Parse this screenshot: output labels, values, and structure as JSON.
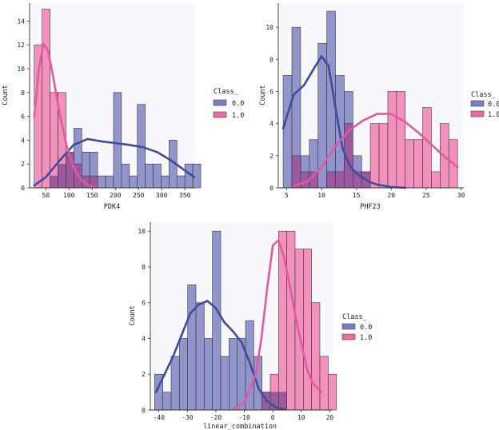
{
  "chart_data": [
    {
      "id": "pdk4",
      "type": "histogram-kde",
      "xlabel": "PDK4",
      "ylabel": "Count",
      "xlim": [
        15,
        372
      ],
      "ylim": [
        0,
        15.5
      ],
      "xticks": [
        50,
        100,
        150,
        200,
        250,
        300,
        350
      ],
      "yticks": [
        0,
        2,
        4,
        6,
        8,
        10,
        12,
        14
      ],
      "legend": {
        "title": "Class_",
        "labels": [
          "0.0",
          "1.0"
        ]
      },
      "series": [
        {
          "name": "0.0",
          "bins": {
            "start": 25,
            "width": 17.1
          },
          "values": [
            0,
            0,
            1,
            2,
            3,
            5,
            3,
            3,
            1,
            1,
            8,
            2,
            1,
            7,
            2,
            2,
            1,
            4,
            1,
            2,
            2
          ]
        },
        {
          "name": "1.0",
          "bins": {
            "start": 25,
            "width": 17.1
          },
          "values": [
            12,
            15,
            8,
            8,
            3,
            2,
            1,
            1,
            0,
            0,
            0,
            0,
            0,
            0,
            0,
            0,
            0,
            0,
            0,
            0,
            0
          ]
        }
      ],
      "kde": [
        {
          "name": "0.0",
          "x": [
            25,
            50,
            80,
            110,
            140,
            170,
            200,
            230,
            260,
            290,
            320,
            345,
            370
          ],
          "y": [
            0.2,
            0.9,
            2.3,
            3.6,
            4.1,
            3.9,
            3.75,
            3.6,
            3.4,
            3.0,
            2.3,
            1.6,
            0.9
          ]
        },
        {
          "name": "1.0",
          "x": [
            25,
            35,
            45,
            55,
            65,
            80,
            95,
            110,
            125,
            140,
            155
          ],
          "y": [
            6,
            10,
            12.1,
            11.5,
            9.5,
            6.2,
            3.5,
            1.7,
            0.7,
            0.25,
            0.05
          ]
        }
      ]
    },
    {
      "id": "phf23",
      "type": "histogram-kde",
      "xlabel": "PHF23",
      "ylabel": "Count",
      "xlim": [
        3.8,
        30.4
      ],
      "ylim": [
        0,
        11.5
      ],
      "xticks": [
        5,
        10,
        15,
        20,
        25,
        30
      ],
      "yticks": [
        0,
        2,
        4,
        6,
        8,
        10
      ],
      "legend": {
        "title": "Class_",
        "labels": [
          "0.0",
          "1.0"
        ]
      },
      "series": [
        {
          "name": "0.0",
          "bins": {
            "start": 4.5,
            "width": 1.25
          },
          "values": [
            7,
            10,
            2,
            3,
            9,
            11,
            7,
            6,
            2,
            1,
            0,
            0,
            0,
            0,
            0,
            0,
            0,
            0,
            0,
            0
          ]
        },
        {
          "name": "1.0",
          "bins": {
            "start": 4.5,
            "width": 1.25
          },
          "values": [
            0,
            2,
            1,
            1,
            0,
            1,
            1,
            4,
            1,
            1,
            4,
            4,
            6,
            6,
            3,
            3,
            5,
            1,
            4,
            3
          ]
        }
      ],
      "kde": [
        {
          "name": "0.0",
          "x": [
            4.5,
            6,
            7.5,
            9,
            10,
            11,
            12,
            13,
            14,
            15,
            16,
            17,
            18,
            20,
            22
          ],
          "y": [
            3.7,
            5.8,
            6.4,
            7.5,
            8.2,
            7.6,
            5.0,
            2.5,
            1.4,
            0.9,
            0.6,
            0.35,
            0.2,
            0.05,
            0
          ]
        },
        {
          "name": "1.0",
          "x": [
            6,
            8,
            10,
            12,
            14,
            16,
            18,
            20,
            22,
            24,
            26,
            28,
            29.5
          ],
          "y": [
            0.1,
            0.4,
            1.3,
            2.6,
            3.6,
            4.2,
            4.6,
            4.6,
            4.1,
            3.4,
            2.6,
            1.8,
            1.3
          ]
        }
      ]
    },
    {
      "id": "linear_combination",
      "type": "histogram-kde",
      "xlabel": "linear_combination",
      "ylabel": "Count",
      "xlim": [
        -43,
        21
      ],
      "ylim": [
        0,
        10.5
      ],
      "xticks": [
        -40,
        -30,
        -20,
        -10,
        0,
        10,
        20
      ],
      "yticks": [
        0,
        2,
        4,
        6,
        8,
        10
      ],
      "legend": {
        "title": "Class_",
        "labels": [
          "0.0",
          "1.0"
        ]
      },
      "series": [
        {
          "name": "0.0",
          "bins": {
            "start": -41.5,
            "width": 2.9
          },
          "values": [
            2,
            1,
            3,
            4,
            7,
            6,
            4,
            10,
            3,
            4,
            4,
            5,
            3,
            1,
            1,
            1,
            0,
            0,
            0,
            0
          ]
        },
        {
          "name": "1.0",
          "bins": {
            "start": -41.5,
            "width": 2.9
          },
          "values": [
            0,
            0,
            0,
            0,
            0,
            0,
            0,
            0,
            0,
            0,
            0,
            0,
            0,
            1,
            2,
            10,
            10,
            9,
            9,
            6,
            3,
            2
          ]
        }
      ],
      "kde": [
        {
          "name": "0.0",
          "x": [
            -41,
            -38,
            -35,
            -32,
            -29,
            -26,
            -23,
            -20,
            -17,
            -14,
            -11,
            -8,
            -5,
            -2,
            1,
            4
          ],
          "y": [
            1.0,
            2.0,
            3.0,
            4.2,
            5.4,
            5.9,
            6.1,
            5.7,
            4.9,
            4.4,
            3.8,
            2.6,
            1.2,
            0.5,
            0.15,
            0.03
          ]
        },
        {
          "name": "1.0",
          "x": [
            -14,
            -10,
            -6,
            -4,
            -2,
            0,
            2,
            4,
            6,
            8,
            10,
            12,
            14,
            17
          ],
          "y": [
            0.05,
            0.4,
            2.0,
            4.0,
            6.8,
            9.2,
            9.5,
            8.5,
            6.9,
            5.2,
            3.7,
            2.3,
            1.5,
            1.0
          ]
        }
      ]
    }
  ],
  "colors": {
    "class0_fill": "#7b7ec1",
    "class1_fill": "#ee6aa4",
    "class0_line": "#3f4c9c",
    "class1_line": "#e05aa0",
    "overlap_fill": "#55398a",
    "plot_bg": "#f8f7fb"
  }
}
